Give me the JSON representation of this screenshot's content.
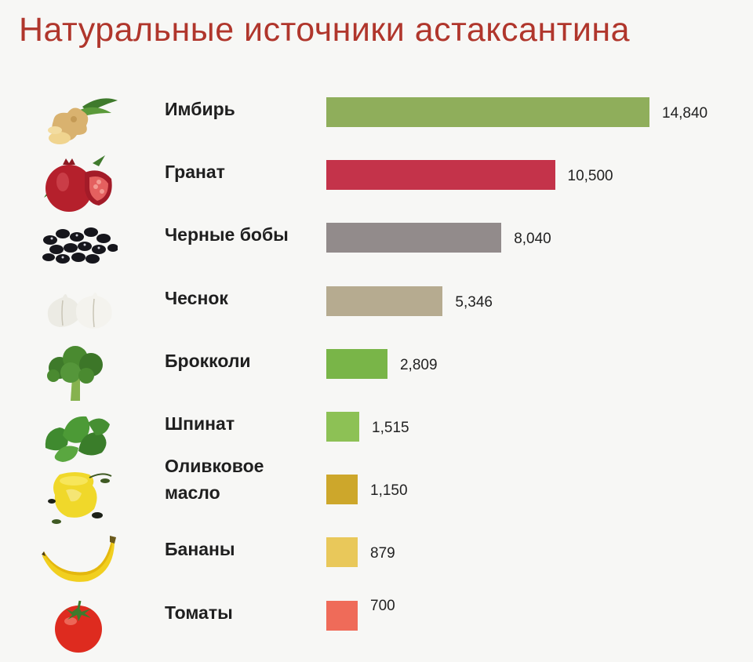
{
  "title": "Натуральные источники астаксантина",
  "chart_data": {
    "type": "bar",
    "orientation": "horizontal",
    "title": "Натуральные источники астаксантина",
    "categories": [
      "Имбирь",
      "Гранат",
      "Черные бобы",
      "Чеснок",
      "Брокколи",
      "Шпинат",
      "Оливковое масло",
      "Бананы",
      "Томаты"
    ],
    "label_lines": [
      [
        "Имбирь"
      ],
      [
        "Гранат"
      ],
      [
        "Черные бобы"
      ],
      [
        "Чеснок"
      ],
      [
        "Брокколи"
      ],
      [
        "Шпинат"
      ],
      [
        "Оливковое",
        "масло"
      ],
      [
        "Бананы"
      ],
      [
        "Томаты"
      ]
    ],
    "values": [
      14840,
      10500,
      8040,
      5346,
      2809,
      1515,
      1150,
      879,
      700
    ],
    "value_labels": [
      "14,840",
      "10,500",
      "8,040",
      "5,346",
      "2,809",
      "1,515",
      "1,150",
      "879",
      "700"
    ],
    "colors": [
      "#8fae5b",
      "#c4334a",
      "#928b8b",
      "#b6ab90",
      "#79b548",
      "#8dc155",
      "#cda72b",
      "#e9c85a",
      "#ef6b59"
    ],
    "icons": [
      "ginger-icon",
      "pomegranate-icon",
      "black-beans-icon",
      "garlic-icon",
      "broccoli-icon",
      "spinach-icon",
      "olive-oil-icon",
      "banana-icon",
      "tomato-icon"
    ],
    "grid": false,
    "legend": "none"
  }
}
